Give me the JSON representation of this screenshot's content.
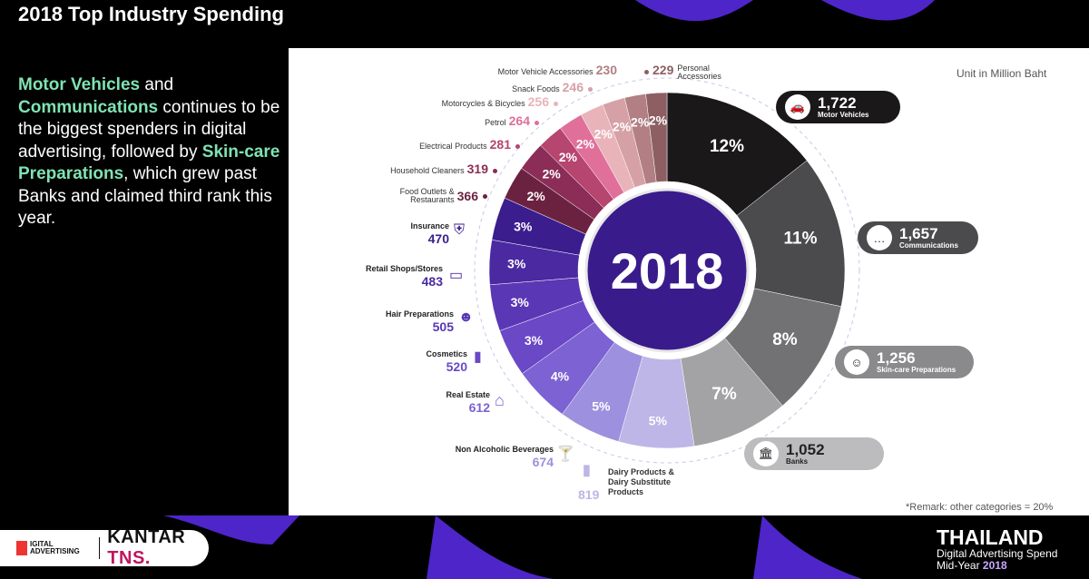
{
  "title": "2018 Top Industry Spending",
  "intro": {
    "p1": "Motor Vehicles",
    "p2": " and ",
    "p3": "Communications",
    "p4": " continues to be the  biggest spenders in digital advertising, followed by ",
    "p5": "Skin-care Preparations",
    "p6": ", which grew past Banks and claimed third rank this year."
  },
  "unit": "Unit in Million Baht",
  "remark": "*Remark: other categories = 20%",
  "footer": {
    "logo_text": "IGITAL ADVERTISING",
    "kantar": "KANTAR ",
    "tns": "TNS.",
    "brand_title": "THAILAND",
    "brand_sub": "Digital Advertising Spend",
    "brand_period": "Mid-Year ",
    "brand_year": "2018"
  },
  "chart_data": {
    "type": "pie",
    "variant": "donut",
    "center_label": "2018",
    "categories": [
      "Motor Vehicles",
      "Communications",
      "Skin-care Preparations",
      "Banks",
      "Dairy Products & Dairy Substitute Products",
      "Non Alcoholic Beverages",
      "Real Estate",
      "Cosmetics",
      "Hair Preparations",
      "Retail Shops/Stores",
      "Insurance",
      "Food Outlets & Restaurants",
      "Household Cleaners",
      "Electrical Products",
      "Petrol",
      "Motorcycles & Bicycles",
      "Snack Foods",
      "Motor Vehicle Accessories",
      "Personal Accessories"
    ],
    "values": [
      1722,
      1657,
      1256,
      1052,
      819,
      674,
      612,
      520,
      505,
      483,
      470,
      366,
      319,
      281,
      264,
      256,
      246,
      230,
      229
    ],
    "value_labels": [
      "1,722",
      "1,657",
      "1,256",
      "1,052",
      "819",
      "674",
      "612",
      "520",
      "505",
      "483",
      "470",
      "366",
      "319",
      "281",
      "264",
      "256",
      "246",
      "230",
      "229"
    ],
    "percent_labels": [
      "12%",
      "11%",
      "8%",
      "7%",
      "5%",
      "5%",
      "4%",
      "3%",
      "3%",
      "3%",
      "3%",
      "2%",
      "2%",
      "2%",
      "2%",
      "2%",
      "2%",
      "2%",
      "2%"
    ],
    "colors": [
      "#1b1819",
      "#4b4a4c",
      "#727173",
      "#a3a2a4",
      "#bdb6e6",
      "#9d90de",
      "#7c62d2",
      "#6a48c6",
      "#5a37b4",
      "#4a29a1",
      "#3b1d8e",
      "#6b2241",
      "#8b2d56",
      "#b6456f",
      "#e06f9a",
      "#e9b3ba",
      "#d6a1a6",
      "#b17f84",
      "#8d5f62"
    ],
    "icons": [
      "car-icon",
      "chat-bubble-icon",
      "mask-icon",
      "bank-icon",
      "milk-carton-icon",
      "drink-icon",
      "house-icon",
      "lipstick-icon",
      "woman-hair-icon",
      "store-icon",
      "shield-icon"
    ]
  }
}
